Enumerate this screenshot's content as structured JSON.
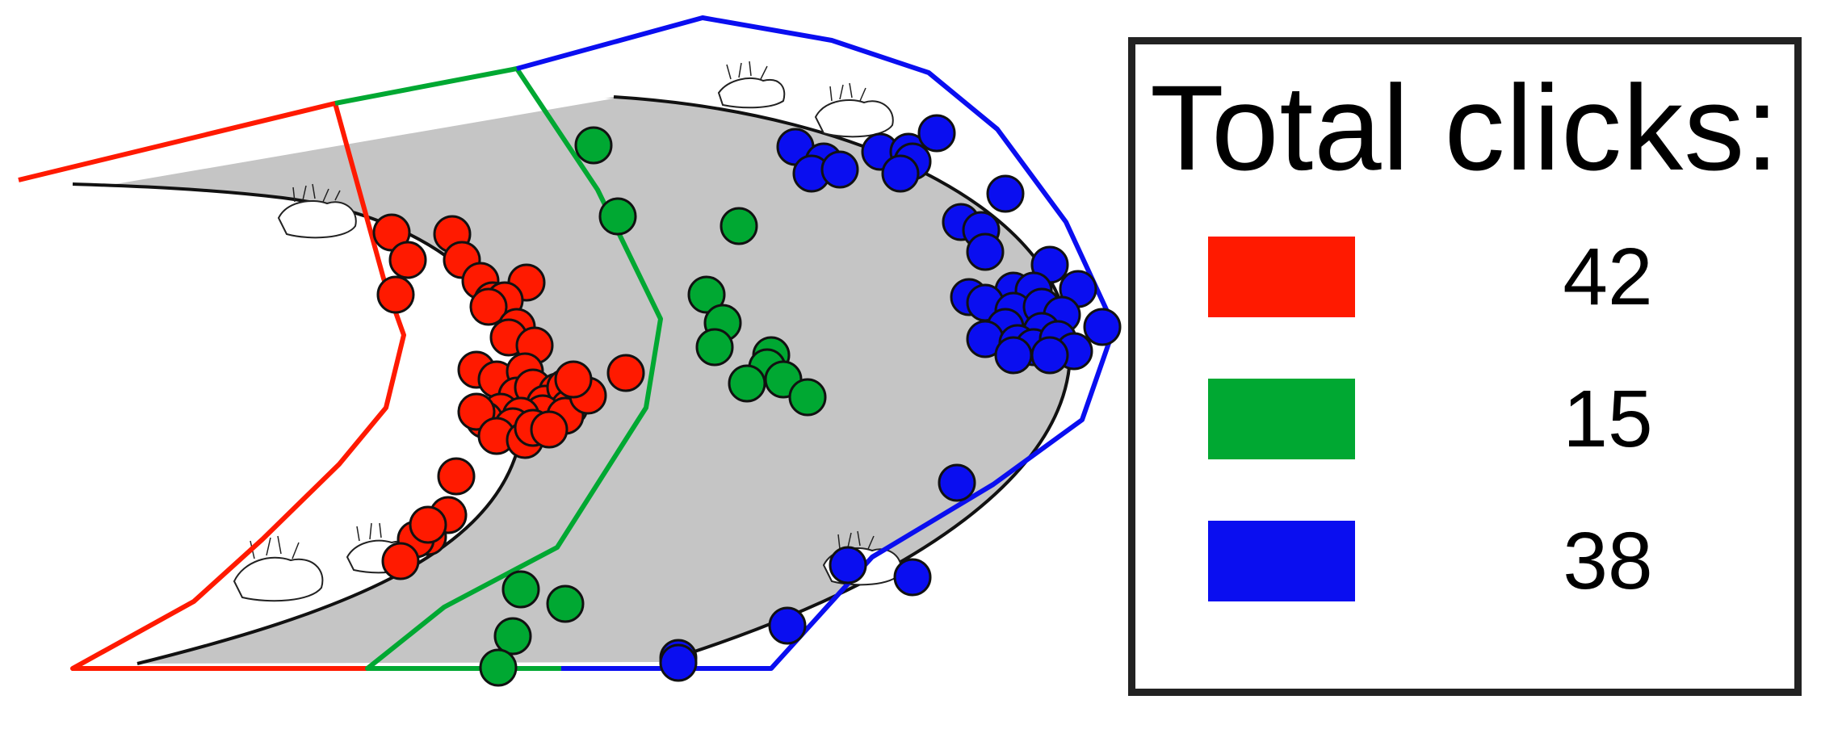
{
  "legend": {
    "title": "Total clicks:",
    "items": [
      {
        "color": "#ff1a00",
        "count": "42"
      },
      {
        "color": "#00a832",
        "count": "15"
      },
      {
        "color": "#0a0ef0",
        "count": "38"
      }
    ]
  },
  "clicks": {
    "red": {
      "color": "#ff1a00",
      "count": 42
    },
    "green": {
      "color": "#00a832",
      "count": 15
    },
    "blue": {
      "color": "#0a0ef0",
      "count": 38
    }
  },
  "icons": [
    "rock-with-plant-icon"
  ]
}
